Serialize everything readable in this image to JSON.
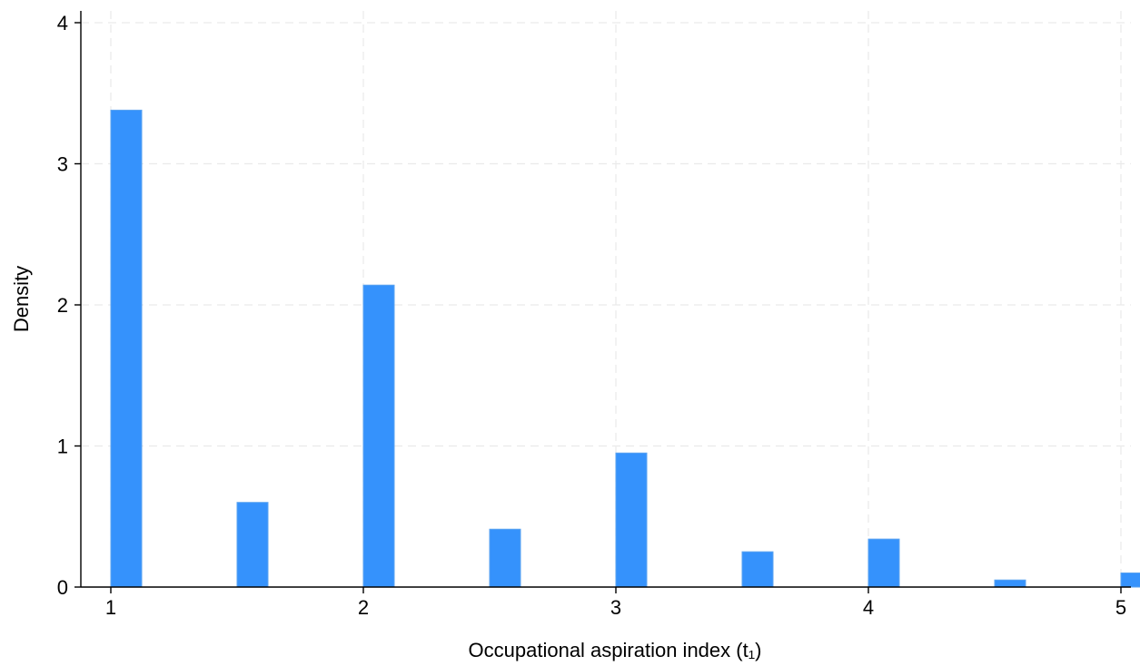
{
  "chart_data": {
    "type": "bar",
    "title": "",
    "xlabel": "Occupational aspiration index (t₁)",
    "ylabel": "Density",
    "xlim": [
      0.9,
      5.05
    ],
    "ylim": [
      0,
      4.1
    ],
    "x_ticks": [
      "1",
      "2",
      "3",
      "4",
      "5"
    ],
    "y_ticks": [
      "0",
      "1",
      "2",
      "3",
      "4"
    ],
    "grid": true,
    "legend": "none",
    "bar_color": "#3592fc",
    "bar_edge_color": "#5aa3f0",
    "series": [
      {
        "x": [
          1.0,
          1.5,
          2.0,
          2.5,
          3.0,
          3.5,
          4.0,
          4.5,
          5.0
        ],
        "values": [
          3.38,
          0.6,
          2.14,
          0.41,
          0.95,
          0.25,
          0.34,
          0.05,
          0.1
        ]
      }
    ]
  }
}
